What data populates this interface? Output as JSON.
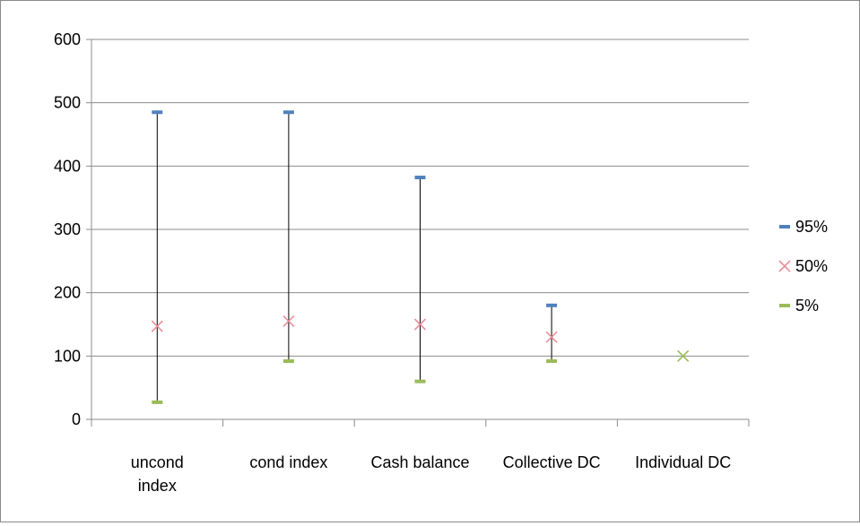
{
  "chart_data": {
    "type": "high-low-close",
    "categories": [
      [
        "uncond",
        "index"
      ],
      [
        "cond index"
      ],
      [
        "Cash balance"
      ],
      [
        "Collective DC"
      ],
      [
        "Individual DC"
      ]
    ],
    "series": [
      {
        "name": "95%",
        "marker": "dash",
        "color": "#4f81bd",
        "values": [
          485,
          485,
          382,
          180,
          100
        ]
      },
      {
        "name": "50%",
        "marker": "x",
        "color": "#e8909a",
        "values": [
          147,
          155,
          150,
          130,
          100
        ]
      },
      {
        "name": "5%",
        "marker": "dash",
        "color": "#9bbb59",
        "values": [
          27,
          92,
          60,
          92,
          100
        ]
      }
    ],
    "ylim": [
      0,
      600
    ],
    "yticks": [
      "0",
      "100",
      "200",
      "300",
      "400",
      "500",
      "600"
    ],
    "grid": true,
    "legend_position": "right"
  }
}
